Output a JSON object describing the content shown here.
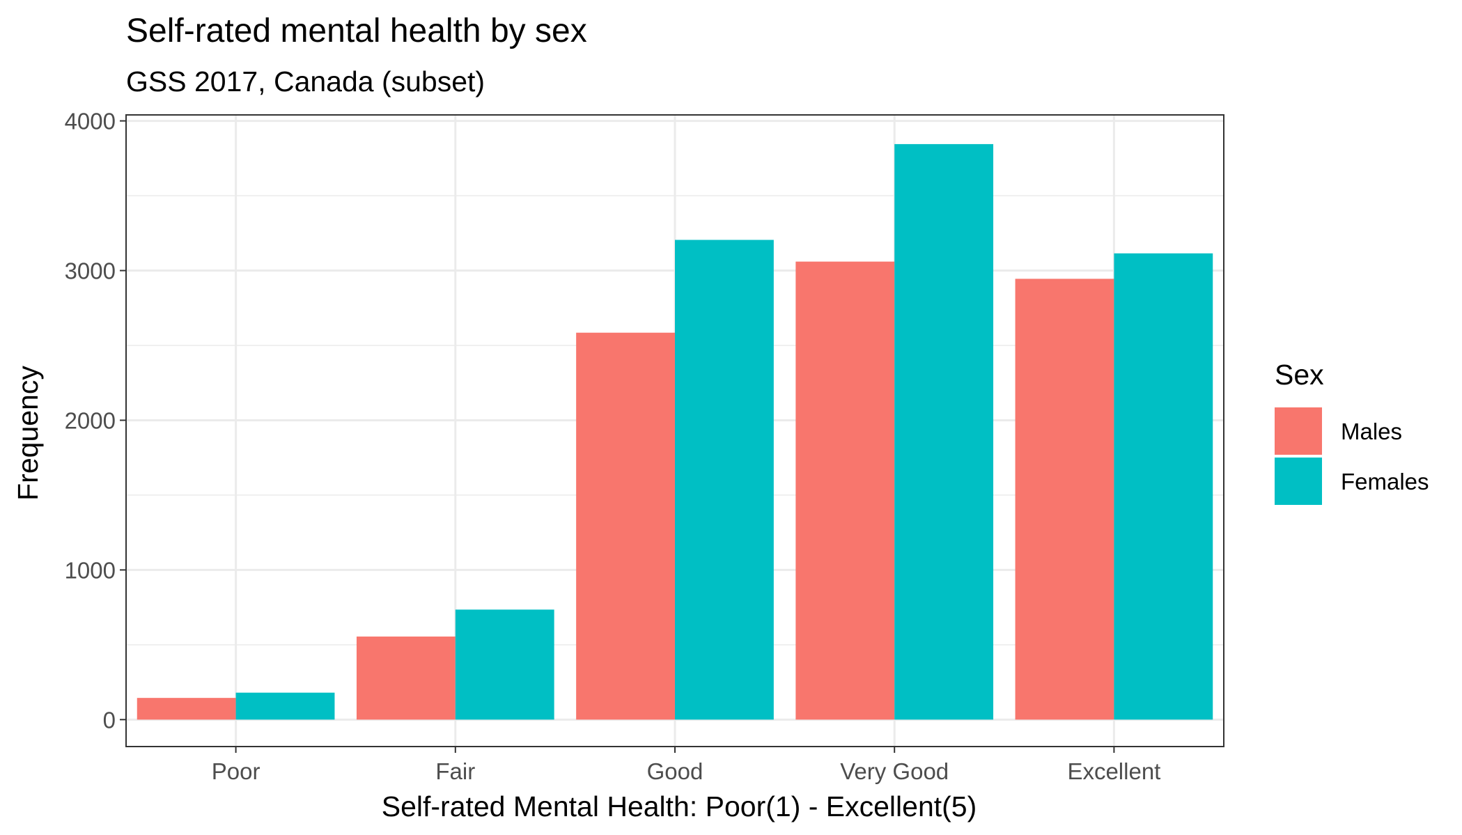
{
  "chart_data": {
    "type": "bar",
    "title": "Self-rated mental health by sex",
    "subtitle": "GSS 2017, Canada (subset)",
    "xlabel": "Self-rated Mental Health: Poor(1) - Excellent(5)",
    "ylabel": "Frequency",
    "categories": [
      "Poor",
      "Fair",
      "Good",
      "Very Good",
      "Excellent"
    ],
    "series": [
      {
        "name": "Males",
        "color": "#F8766D",
        "values": [
          145,
          555,
          2585,
          3060,
          2945
        ]
      },
      {
        "name": "Females",
        "color": "#00BFC4",
        "values": [
          180,
          735,
          3205,
          3845,
          3115
        ]
      }
    ],
    "ylim": [
      -180,
      4040
    ],
    "yticks": [
      0,
      1000,
      2000,
      3000,
      4000
    ],
    "grid": true,
    "legend": {
      "title": "Sex",
      "position": "right"
    }
  }
}
